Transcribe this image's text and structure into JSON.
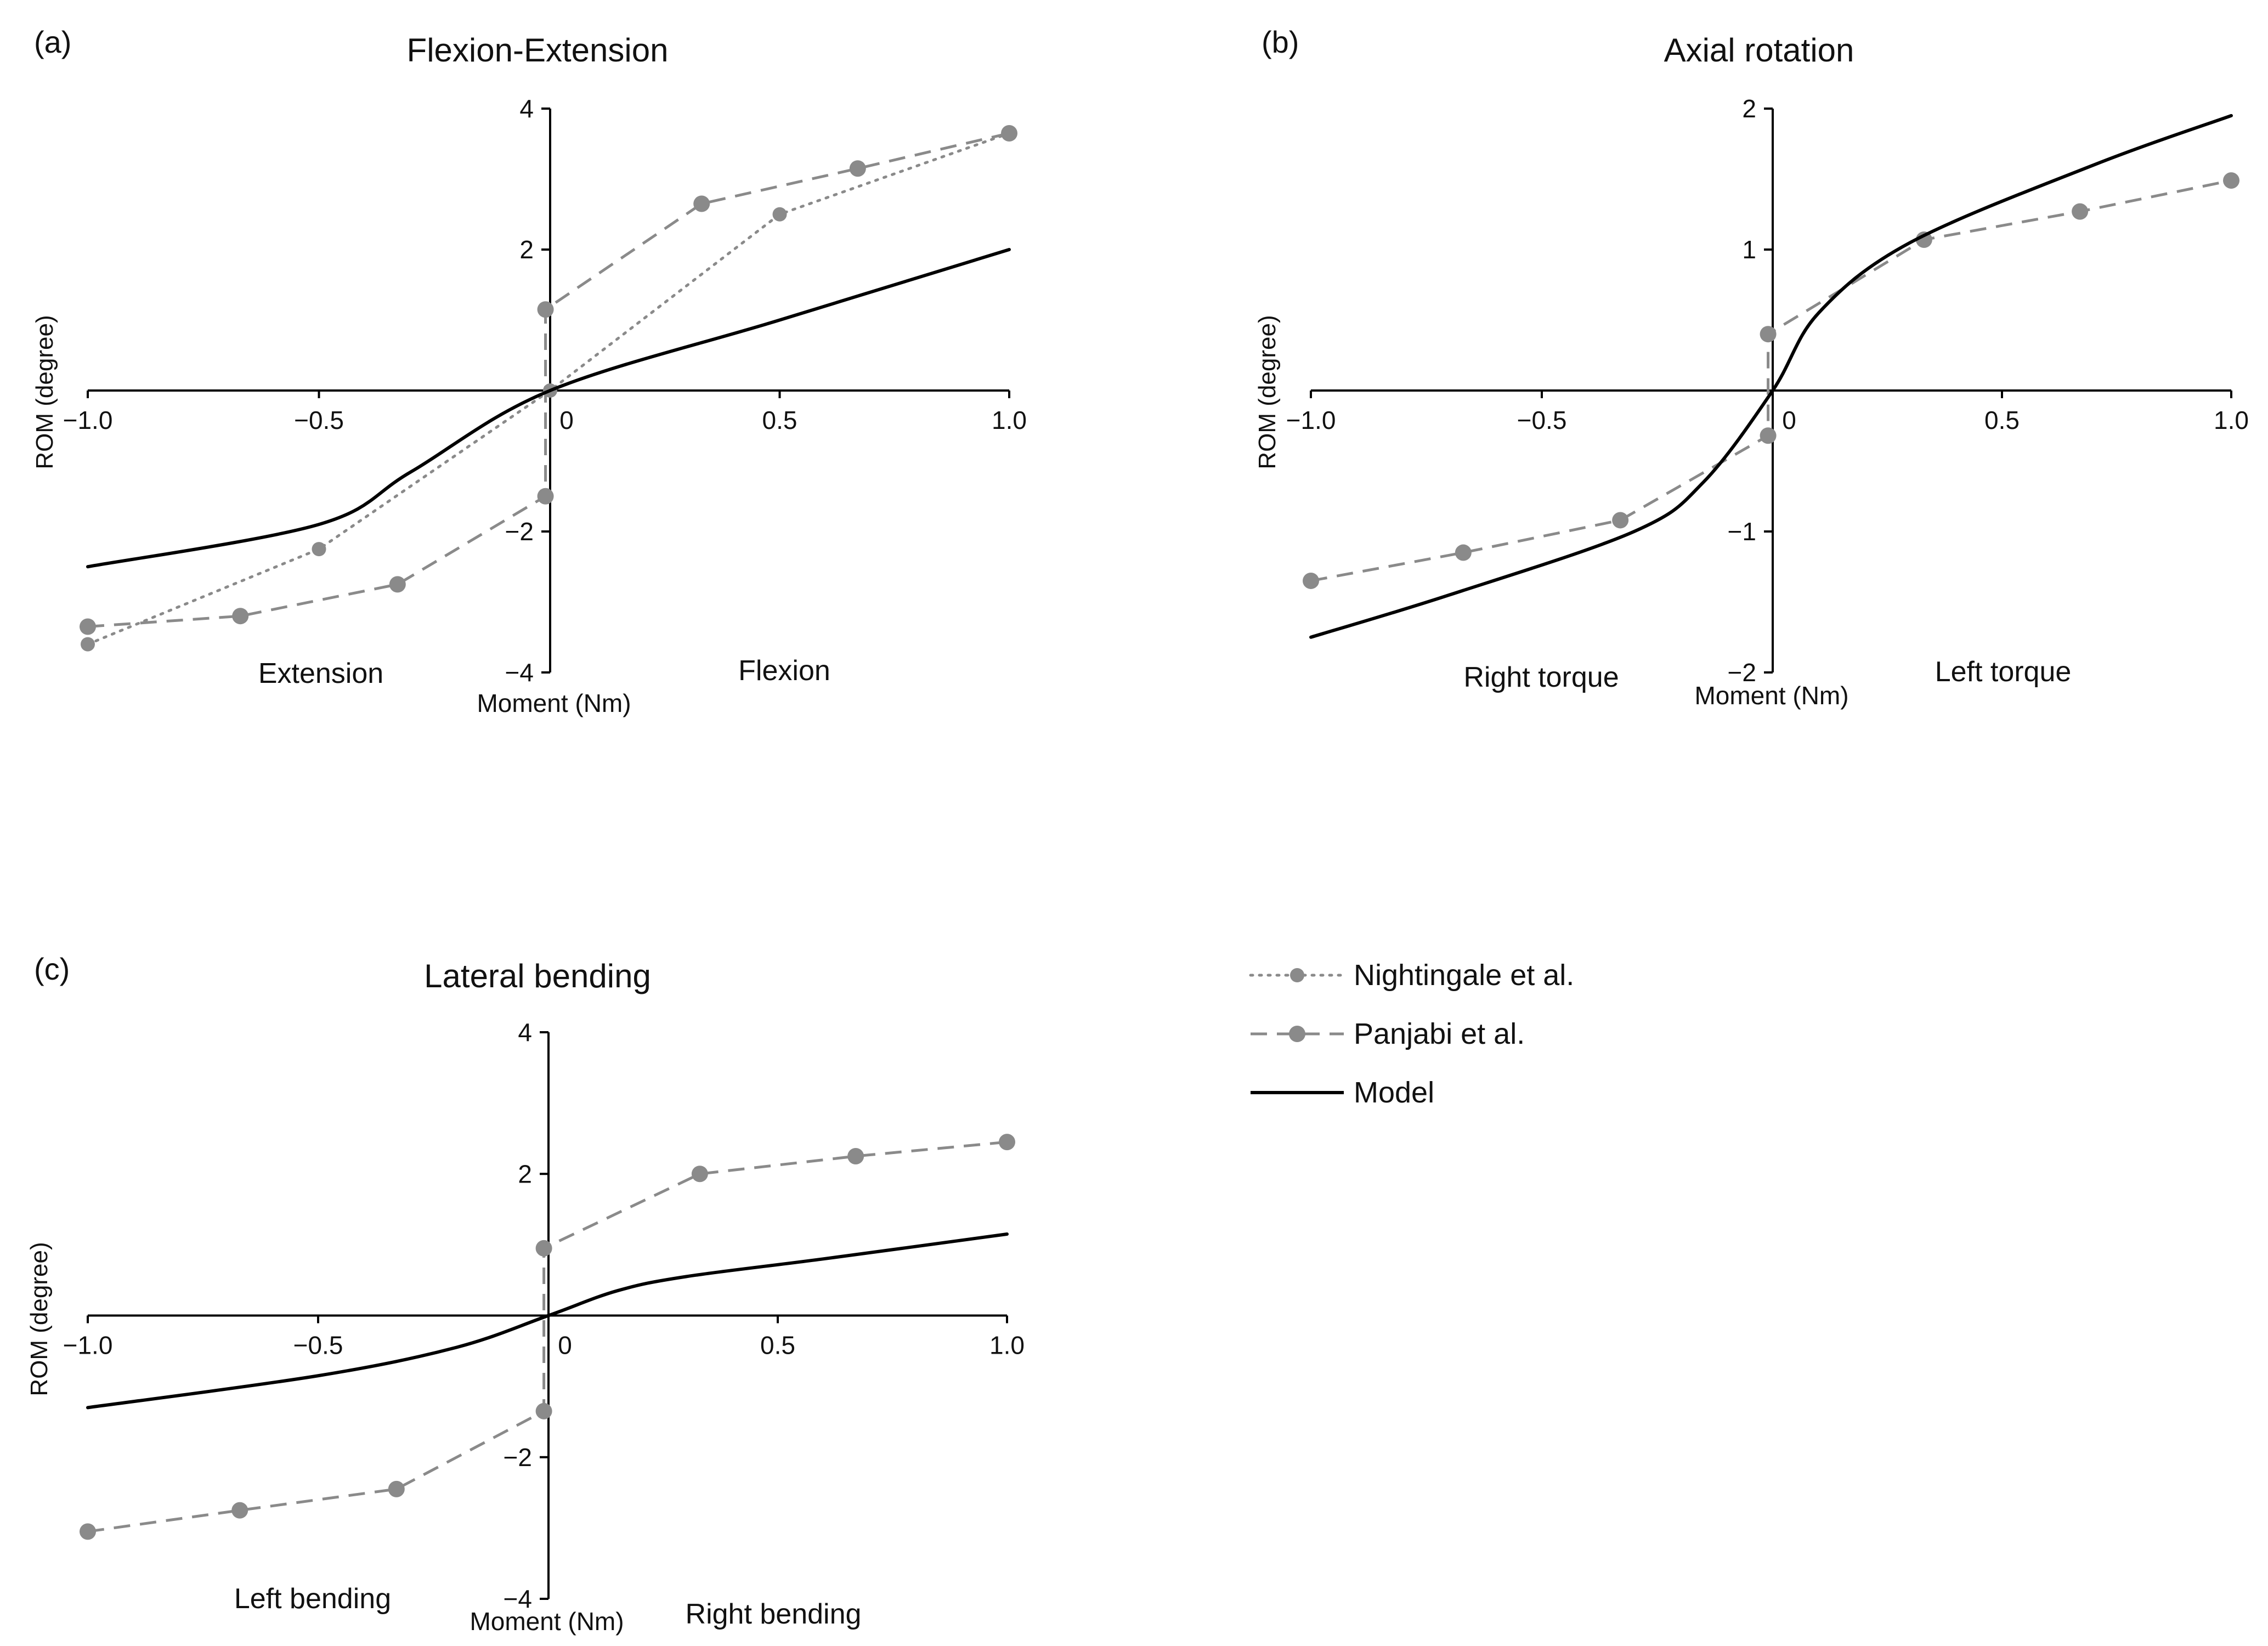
{
  "legend": [
    {
      "key": "nightingale",
      "label": "Nightingale et al."
    },
    {
      "key": "panjabi",
      "label": "Panjabi et al."
    },
    {
      "key": "model",
      "label": "Model"
    }
  ],
  "colors": {
    "reference": "#8a8a8a",
    "model": "#000000",
    "axis": "#000000"
  },
  "chart_data": [
    {
      "id": "a",
      "type": "line",
      "letter": "(a)",
      "title": "Flexion-Extension",
      "ylabel": "ROM (degree)",
      "xlabel": "Moment (Nm)",
      "neg_label": "Extension",
      "pos_label": "Flexion",
      "xlim": [
        -1.0,
        1.0
      ],
      "ylim": [
        -4,
        4
      ],
      "xticks": [
        -1.0,
        -0.5,
        0,
        0.5,
        1.0
      ],
      "xtick_labels": [
        "−1.0",
        "−0.5",
        "0",
        "0.5",
        "1.0"
      ],
      "yticks": [
        4,
        2,
        -2,
        -4
      ],
      "ytick_labels": [
        "4",
        "2",
        "−2",
        "−4"
      ],
      "series": [
        {
          "name": "Nightingale et al.",
          "key": "nightingale",
          "x": [
            -1.0,
            -0.5,
            0,
            0.5,
            1.0
          ],
          "y": [
            -3.6,
            -2.25,
            0,
            2.5,
            3.65
          ]
        },
        {
          "name": "Panjabi et al.",
          "key": "panjabi",
          "x": [
            -1.0,
            -0.67,
            -0.33,
            -0.01,
            -0.01,
            0.33,
            0.67,
            1.0
          ],
          "y": [
            -3.35,
            -3.2,
            -2.75,
            -1.5,
            1.15,
            2.65,
            3.15,
            3.65
          ]
        },
        {
          "name": "Model",
          "key": "model",
          "x": [
            -1.0,
            -0.5,
            -0.3,
            0,
            0.5,
            1.0
          ],
          "y": [
            -2.5,
            -1.9,
            -1.15,
            0,
            1.0,
            2.0
          ]
        }
      ]
    },
    {
      "id": "b",
      "type": "line",
      "letter": "(b)",
      "title": "Axial rotation",
      "ylabel": "ROM (degree)",
      "xlabel": "Moment (Nm)",
      "neg_label": "Right torque",
      "pos_label": "Left torque",
      "xlim": [
        -1.0,
        1.0
      ],
      "ylim": [
        -2,
        2
      ],
      "xticks": [
        -1.0,
        -0.5,
        0,
        0.5,
        1.0
      ],
      "xtick_labels": [
        "−1.0",
        "−0.5",
        "0",
        "0.5",
        "1.0"
      ],
      "yticks": [
        2,
        1,
        -1,
        -2
      ],
      "ytick_labels": [
        "2",
        "1",
        "−1",
        "−2"
      ],
      "series": [
        {
          "name": "Panjabi et al.",
          "key": "panjabi",
          "x": [
            -1.0,
            -0.67,
            -0.33,
            -0.01,
            -0.01,
            0.33,
            0.67,
            1.0
          ],
          "y": [
            -1.35,
            -1.15,
            -0.92,
            -0.32,
            0.4,
            1.07,
            1.27,
            1.49
          ]
        },
        {
          "name": "Model",
          "key": "model",
          "x": [
            -1.0,
            -0.7,
            -0.3,
            -0.15,
            0,
            0.1,
            0.3,
            0.7,
            1.0
          ],
          "y": [
            -1.75,
            -1.45,
            -1.0,
            -0.65,
            0,
            0.55,
            1.05,
            1.6,
            1.95
          ]
        }
      ]
    },
    {
      "id": "c",
      "type": "line",
      "letter": "(c)",
      "title": "Lateral bending",
      "ylabel": "ROM (degree)",
      "xlabel": "Moment (Nm)",
      "neg_label": "Left bending",
      "pos_label": "Right bending",
      "xlim": [
        -1.0,
        1.0
      ],
      "ylim": [
        -4,
        4
      ],
      "xticks": [
        -1.0,
        -0.5,
        0,
        0.5,
        1.0
      ],
      "xtick_labels": [
        "−1.0",
        "−0.5",
        "0",
        "0.5",
        "1.0"
      ],
      "yticks": [
        4,
        2,
        -2,
        -4
      ],
      "ytick_labels": [
        "4",
        "2",
        "−2",
        "−4"
      ],
      "series": [
        {
          "name": "Panjabi et al.",
          "key": "panjabi",
          "x": [
            -1.0,
            -0.67,
            -0.33,
            -0.01,
            -0.01,
            0.33,
            0.67,
            1.0
          ],
          "y": [
            -3.05,
            -2.75,
            -2.45,
            -1.35,
            0.95,
            2.0,
            2.25,
            2.45
          ]
        },
        {
          "name": "Model",
          "key": "model",
          "x": [
            -1.0,
            -0.5,
            -0.2,
            0,
            0.15,
            0.3,
            0.6,
            1.0
          ],
          "y": [
            -1.3,
            -0.85,
            -0.45,
            0,
            0.35,
            0.55,
            0.8,
            1.15
          ]
        }
      ]
    }
  ]
}
